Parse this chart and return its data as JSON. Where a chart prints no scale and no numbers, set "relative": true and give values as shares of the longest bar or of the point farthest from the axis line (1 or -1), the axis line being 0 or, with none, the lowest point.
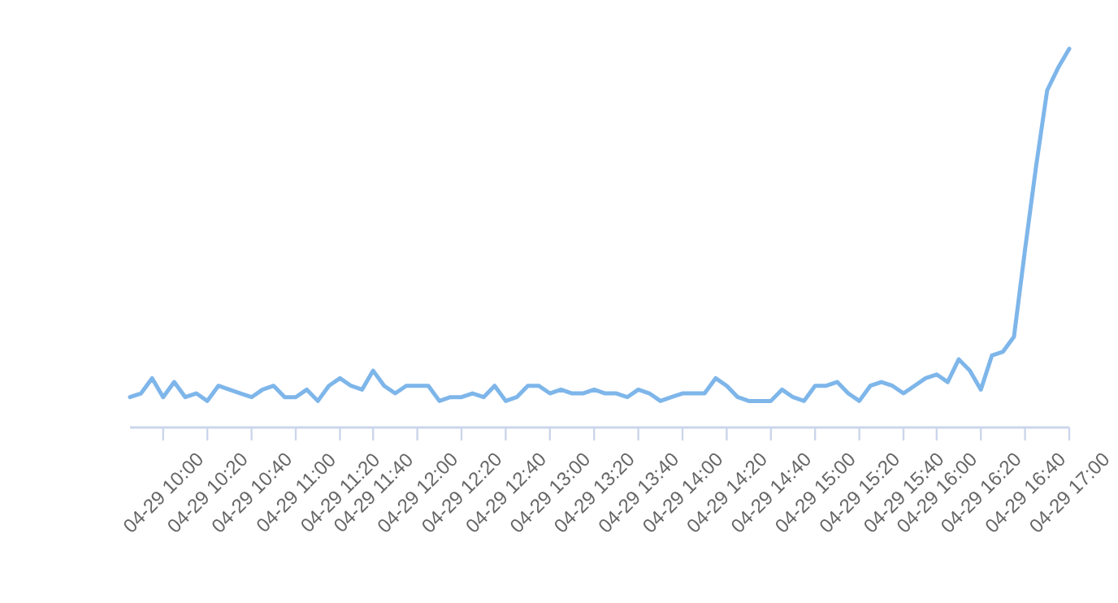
{
  "chart_data": {
    "type": "line",
    "relative": true,
    "marker": "none",
    "line_style": "solid",
    "categories": [
      null,
      null,
      null,
      "04-29 10:00",
      null,
      null,
      null,
      "04-29 10:20",
      null,
      null,
      null,
      "04-29 10:40",
      null,
      null,
      null,
      "04-29 11:00",
      null,
      null,
      null,
      "04-29 11:20",
      null,
      null,
      "04-29 11:40",
      null,
      null,
      null,
      "04-29 12:00",
      null,
      null,
      null,
      "04-29 12:20",
      null,
      null,
      null,
      "04-29 12:40",
      null,
      null,
      null,
      "04-29 13:00",
      null,
      null,
      null,
      "04-29 13:20",
      null,
      null,
      null,
      "04-29 13:40",
      null,
      null,
      null,
      "04-29 14:00",
      null,
      null,
      null,
      "04-29 14:20",
      null,
      null,
      null,
      "04-29 14:40",
      null,
      null,
      null,
      "04-29 15:00",
      null,
      null,
      null,
      "04-29 15:20",
      null,
      null,
      null,
      "04-29 15:40",
      null,
      null,
      "04-29 16:00",
      null,
      null,
      null,
      "04-29 16:20",
      null,
      null,
      null,
      "04-29 16:40",
      null,
      null,
      null,
      "04-29 17:00"
    ],
    "series": [
      {
        "color": "#7eb6ea",
        "values": [
          0.08,
          0.09,
          0.13,
          0.08,
          0.12,
          0.08,
          0.09,
          0.07,
          0.11,
          0.1,
          0.09,
          0.08,
          0.1,
          0.11,
          0.08,
          0.08,
          0.1,
          0.07,
          0.11,
          0.13,
          0.11,
          0.1,
          0.15,
          0.11,
          0.09,
          0.11,
          0.11,
          0.11,
          0.07,
          0.08,
          0.08,
          0.09,
          0.08,
          0.11,
          0.07,
          0.08,
          0.11,
          0.11,
          0.09,
          0.1,
          0.09,
          0.09,
          0.1,
          0.09,
          0.09,
          0.08,
          0.1,
          0.09,
          0.07,
          0.08,
          0.09,
          0.09,
          0.09,
          0.13,
          0.11,
          0.08,
          0.07,
          0.07,
          0.07,
          0.1,
          0.08,
          0.07,
          0.11,
          0.11,
          0.12,
          0.09,
          0.07,
          0.11,
          0.12,
          0.11,
          0.09,
          0.11,
          0.13,
          0.14,
          0.12,
          0.18,
          0.15,
          0.1,
          0.19,
          0.2,
          0.24,
          0.47,
          0.69,
          0.89,
          0.95,
          1
        ]
      }
    ]
  }
}
